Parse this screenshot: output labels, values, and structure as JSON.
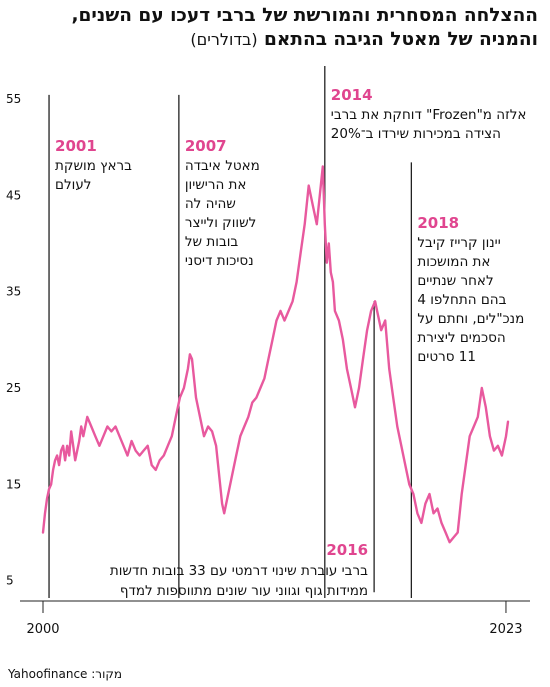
{
  "header": {
    "title": "ההצלחה המסחרית והמורשת של ברבי דעכו עם השנים, והמניה של מאטל הגיבה בהתאם",
    "unit": "(בדולרים)"
  },
  "source": "מקור: Yahoofinance",
  "colors": {
    "line": "#e8599e",
    "accent": "#e0458f",
    "text": "#111111",
    "axis": "#222222"
  },
  "chart_data": {
    "type": "line",
    "x_start_label": "2000",
    "x_end_label": "2023",
    "xlim": [
      2000,
      2023.3
    ],
    "ylim": [
      3,
      58
    ],
    "yticks": [
      5,
      15,
      25,
      35,
      45,
      55
    ],
    "series": [
      {
        "values": [
          [
            2000.0,
            10
          ],
          [
            2000.1,
            12
          ],
          [
            2000.2,
            13.5
          ],
          [
            2000.3,
            14.5
          ],
          [
            2000.4,
            15
          ],
          [
            2000.5,
            16.5
          ],
          [
            2000.6,
            17.5
          ],
          [
            2000.7,
            18
          ],
          [
            2000.8,
            17
          ],
          [
            2000.9,
            18.5
          ],
          [
            2001.0,
            19
          ],
          [
            2001.1,
            17.5
          ],
          [
            2001.2,
            19
          ],
          [
            2001.3,
            18
          ],
          [
            2001.4,
            20.5
          ],
          [
            2001.5,
            19
          ],
          [
            2001.6,
            17.5
          ],
          [
            2001.7,
            18.5
          ],
          [
            2001.8,
            19.5
          ],
          [
            2001.9,
            21
          ],
          [
            2002.0,
            20
          ],
          [
            2002.2,
            22
          ],
          [
            2002.4,
            21
          ],
          [
            2002.6,
            20
          ],
          [
            2002.8,
            19
          ],
          [
            2003.0,
            20
          ],
          [
            2003.2,
            21
          ],
          [
            2003.4,
            20.5
          ],
          [
            2003.6,
            21
          ],
          [
            2003.8,
            20
          ],
          [
            2004.0,
            19
          ],
          [
            2004.2,
            18
          ],
          [
            2004.4,
            19.5
          ],
          [
            2004.6,
            18.5
          ],
          [
            2004.8,
            18
          ],
          [
            2005.0,
            18.5
          ],
          [
            2005.2,
            19
          ],
          [
            2005.4,
            17
          ],
          [
            2005.6,
            16.5
          ],
          [
            2005.8,
            17.5
          ],
          [
            2006.0,
            18
          ],
          [
            2006.2,
            19
          ],
          [
            2006.4,
            20
          ],
          [
            2006.6,
            22
          ],
          [
            2006.8,
            24
          ],
          [
            2007.0,
            25
          ],
          [
            2007.2,
            27
          ],
          [
            2007.3,
            28.5
          ],
          [
            2007.4,
            28
          ],
          [
            2007.5,
            26
          ],
          [
            2007.6,
            24
          ],
          [
            2007.8,
            22
          ],
          [
            2008.0,
            20
          ],
          [
            2008.2,
            21
          ],
          [
            2008.4,
            20.5
          ],
          [
            2008.6,
            19
          ],
          [
            2008.8,
            15
          ],
          [
            2008.9,
            13
          ],
          [
            2009.0,
            12
          ],
          [
            2009.2,
            14
          ],
          [
            2009.4,
            16
          ],
          [
            2009.6,
            18
          ],
          [
            2009.8,
            20
          ],
          [
            2010.0,
            21
          ],
          [
            2010.2,
            22
          ],
          [
            2010.4,
            23.5
          ],
          [
            2010.6,
            24
          ],
          [
            2010.8,
            25
          ],
          [
            2011.0,
            26
          ],
          [
            2011.2,
            28
          ],
          [
            2011.4,
            30
          ],
          [
            2011.6,
            32
          ],
          [
            2011.8,
            33
          ],
          [
            2012.0,
            32
          ],
          [
            2012.2,
            33
          ],
          [
            2012.4,
            34
          ],
          [
            2012.6,
            36
          ],
          [
            2012.8,
            39
          ],
          [
            2013.0,
            42
          ],
          [
            2013.2,
            46
          ],
          [
            2013.4,
            44
          ],
          [
            2013.6,
            42
          ],
          [
            2013.8,
            46
          ],
          [
            2013.9,
            48
          ],
          [
            2014.0,
            42
          ],
          [
            2014.1,
            38
          ],
          [
            2014.2,
            40
          ],
          [
            2014.3,
            37
          ],
          [
            2014.4,
            36
          ],
          [
            2014.5,
            33
          ],
          [
            2014.7,
            32
          ],
          [
            2014.9,
            30
          ],
          [
            2015.1,
            27
          ],
          [
            2015.3,
            25
          ],
          [
            2015.5,
            23
          ],
          [
            2015.7,
            25
          ],
          [
            2015.9,
            28
          ],
          [
            2016.1,
            31
          ],
          [
            2016.3,
            33
          ],
          [
            2016.5,
            34
          ],
          [
            2016.6,
            33
          ],
          [
            2016.8,
            31
          ],
          [
            2017.0,
            32
          ],
          [
            2017.2,
            27
          ],
          [
            2017.4,
            24
          ],
          [
            2017.6,
            21
          ],
          [
            2017.8,
            19
          ],
          [
            2018.0,
            17
          ],
          [
            2018.2,
            15
          ],
          [
            2018.4,
            14
          ],
          [
            2018.6,
            12
          ],
          [
            2018.8,
            11
          ],
          [
            2019.0,
            13
          ],
          [
            2019.2,
            14
          ],
          [
            2019.4,
            12
          ],
          [
            2019.6,
            12.5
          ],
          [
            2019.8,
            11
          ],
          [
            2020.0,
            10
          ],
          [
            2020.2,
            9
          ],
          [
            2020.4,
            9.5
          ],
          [
            2020.6,
            10
          ],
          [
            2020.8,
            14
          ],
          [
            2021.0,
            17
          ],
          [
            2021.2,
            20
          ],
          [
            2021.4,
            21
          ],
          [
            2021.6,
            22
          ],
          [
            2021.8,
            25
          ],
          [
            2022.0,
            23
          ],
          [
            2022.2,
            20
          ],
          [
            2022.4,
            18.5
          ],
          [
            2022.6,
            19
          ],
          [
            2022.8,
            18
          ],
          [
            2023.0,
            20
          ],
          [
            2023.1,
            21.5
          ]
        ]
      }
    ],
    "annotations": [
      {
        "year": "2001",
        "x": 2000.3,
        "y_top": 55,
        "text": [
          "בראץ מושקת",
          "לעולם"
        ]
      },
      {
        "year": "2007",
        "x": 2006.75,
        "y_top": 55,
        "text": [
          "מאטל איבדה",
          "את הרישיון",
          "שהיה לה",
          "לשווק ולייצר",
          "בובות של",
          "נסיכות דיסני"
        ]
      },
      {
        "year": "2014",
        "x": 2014.0,
        "y_top": 58,
        "text": [
          "אלזה מ\"Frozen\" דוחקת את ברבי",
          "הצידה במכירות שירדו ב־20%"
        ]
      },
      {
        "year": "2018",
        "x": 2018.3,
        "y_top": 48,
        "text": [
          "יינון קרייז קיבל",
          "את המושכות",
          "לאחר שנתיים",
          "בהם התחלפו 4",
          "מנכ\"לים, וחתם על",
          "הסכמים ליצירת",
          "11 סרטים"
        ]
      },
      {
        "year": "2016",
        "x": 2016.45,
        "y_top": 34,
        "text": [
          "ברבי עוברת שינוי דרמטי עם 33 בובות חדשות",
          "ממידות גוף וגווני עור שונים מתווספות למדף"
        ]
      }
    ]
  }
}
